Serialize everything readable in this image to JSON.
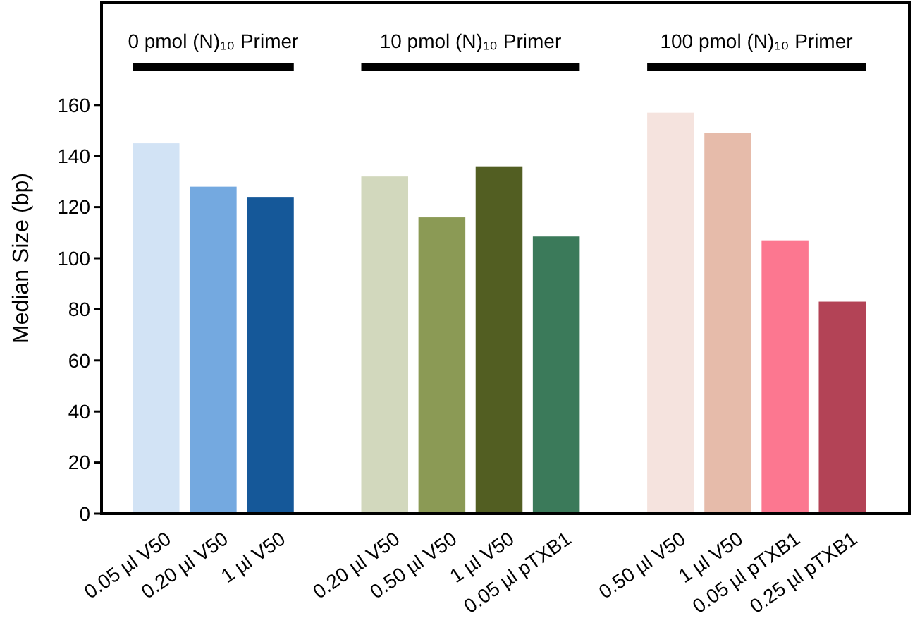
{
  "chart_data": {
    "type": "bar",
    "ylabel": "Median Size (bp)",
    "categories": [
      "0.05 µl V50",
      "0.20 µl V50",
      "1 µl V50",
      null,
      "0.20 µl V50",
      "0.50 µl V50",
      "1 µl V50",
      "0.05 µl pTXB1",
      null,
      "0.50 µl V50",
      "1 µl V50",
      "0.05 µl pTXB1",
      "0.25 µl pTXB1"
    ],
    "values": [
      145,
      128,
      124,
      null,
      132,
      116,
      136,
      108.5,
      null,
      157,
      149,
      107,
      83
    ],
    "colors": [
      "#d2e3f5",
      "#74a9e0",
      "#155899",
      null,
      "#d2d8bd",
      "#8b9a55",
      "#525e22",
      "#3b7a5a",
      null,
      "#f5e3de",
      "#e6bbaa",
      "#fc7790",
      "#b34356"
    ],
    "ylim": [
      0,
      200
    ],
    "yticks": [
      0,
      20,
      40,
      60,
      80,
      100,
      120,
      140,
      160
    ],
    "annotations": [
      "0 pmol (N)₁₀ Primer",
      "10 pmol (N)₁₀ Primer",
      "100 pmol (N)₁₀ Primer"
    ]
  }
}
